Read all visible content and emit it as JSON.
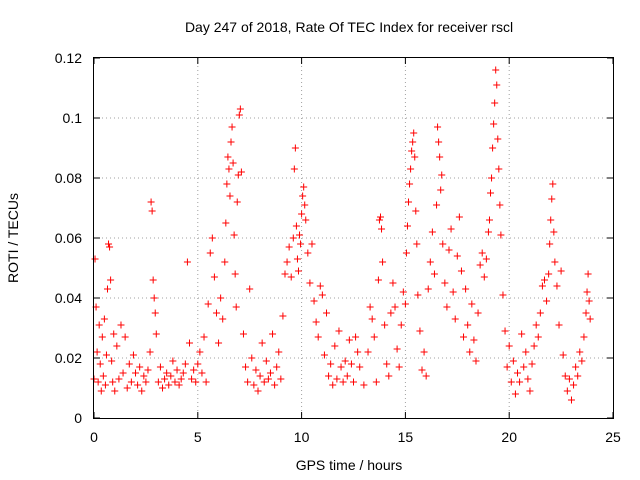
{
  "chart_data": {
    "type": "scatter",
    "title": "Day 247 of 2018, Rate Of TEC Index for receiver rscl",
    "xlabel": "GPS time / hours",
    "ylabel": "ROTI / TECUs",
    "xlim": [
      0,
      25
    ],
    "ylim": [
      0,
      0.12
    ],
    "xticks": [
      0,
      5,
      10,
      15,
      20,
      25
    ],
    "xtick_labels": [
      "0",
      "5",
      "10",
      "15",
      "20",
      "25"
    ],
    "yticks": [
      0,
      0.02,
      0.04,
      0.06,
      0.08,
      0.1,
      0.12
    ],
    "ytick_labels": [
      "0",
      "0.02",
      "0.04",
      "0.06",
      "0.08",
      "0.1",
      "0.12"
    ],
    "grid": true,
    "marker": "+",
    "color": "#ff0000",
    "series": [
      {
        "name": "ROTI",
        "points": [
          [
            0.0,
            0.013
          ],
          [
            0.05,
            0.053
          ],
          [
            0.1,
            0.037
          ],
          [
            0.15,
            0.022
          ],
          [
            0.2,
            0.012
          ],
          [
            0.25,
            0.031
          ],
          [
            0.3,
            0.018
          ],
          [
            0.35,
            0.009
          ],
          [
            0.4,
            0.027
          ],
          [
            0.45,
            0.014
          ],
          [
            0.5,
            0.033
          ],
          [
            0.55,
            0.011
          ],
          [
            0.6,
            0.021
          ],
          [
            0.65,
            0.043
          ],
          [
            0.7,
            0.058
          ],
          [
            0.75,
            0.057
          ],
          [
            0.8,
            0.046
          ],
          [
            0.85,
            0.019
          ],
          [
            0.9,
            0.012
          ],
          [
            0.95,
            0.028
          ],
          [
            1.0,
            0.009
          ],
          [
            1.1,
            0.024
          ],
          [
            1.2,
            0.013
          ],
          [
            1.3,
            0.031
          ],
          [
            1.4,
            0.015
          ],
          [
            1.5,
            0.027
          ],
          [
            1.6,
            0.01
          ],
          [
            1.7,
            0.018
          ],
          [
            1.8,
            0.012
          ],
          [
            1.9,
            0.021
          ],
          [
            2.0,
            0.015
          ],
          [
            2.1,
            0.011
          ],
          [
            2.2,
            0.017
          ],
          [
            2.3,
            0.009
          ],
          [
            2.4,
            0.014
          ],
          [
            2.5,
            0.012
          ],
          [
            2.6,
            0.016
          ],
          [
            2.7,
            0.022
          ],
          [
            2.75,
            0.072
          ],
          [
            2.8,
            0.069
          ],
          [
            2.85,
            0.046
          ],
          [
            2.9,
            0.04
          ],
          [
            2.95,
            0.035
          ],
          [
            3.0,
            0.028
          ],
          [
            3.1,
            0.012
          ],
          [
            3.2,
            0.017
          ],
          [
            3.3,
            0.01
          ],
          [
            3.4,
            0.013
          ],
          [
            3.5,
            0.015
          ],
          [
            3.6,
            0.011
          ],
          [
            3.7,
            0.014
          ],
          [
            3.8,
            0.019
          ],
          [
            3.9,
            0.012
          ],
          [
            4.0,
            0.016
          ],
          [
            4.1,
            0.011
          ],
          [
            4.2,
            0.013
          ],
          [
            4.3,
            0.015
          ],
          [
            4.4,
            0.018
          ],
          [
            4.5,
            0.052
          ],
          [
            4.6,
            0.025
          ],
          [
            4.7,
            0.013
          ],
          [
            4.8,
            0.016
          ],
          [
            4.9,
            0.012
          ],
          [
            5.0,
            0.018
          ],
          [
            5.1,
            0.022
          ],
          [
            5.2,
            0.015
          ],
          [
            5.3,
            0.027
          ],
          [
            5.4,
            0.012
          ],
          [
            5.5,
            0.038
          ],
          [
            5.6,
            0.055
          ],
          [
            5.7,
            0.06
          ],
          [
            5.8,
            0.047
          ],
          [
            5.9,
            0.035
          ],
          [
            6.0,
            0.025
          ],
          [
            6.1,
            0.04
          ],
          [
            6.2,
            0.033
          ],
          [
            6.3,
            0.052
          ],
          [
            6.35,
            0.065
          ],
          [
            6.4,
            0.078
          ],
          [
            6.45,
            0.087
          ],
          [
            6.5,
            0.083
          ],
          [
            6.55,
            0.074
          ],
          [
            6.6,
            0.092
          ],
          [
            6.65,
            0.097
          ],
          [
            6.7,
            0.085
          ],
          [
            6.75,
            0.061
          ],
          [
            6.8,
            0.048
          ],
          [
            6.85,
            0.037
          ],
          [
            6.9,
            0.072
          ],
          [
            6.95,
            0.081
          ],
          [
            7.0,
            0.101
          ],
          [
            7.05,
            0.103
          ],
          [
            7.1,
            0.082
          ],
          [
            7.2,
            0.028
          ],
          [
            7.3,
            0.017
          ],
          [
            7.4,
            0.012
          ],
          [
            7.5,
            0.043
          ],
          [
            7.6,
            0.02
          ],
          [
            7.7,
            0.011
          ],
          [
            7.8,
            0.016
          ],
          [
            7.9,
            0.009
          ],
          [
            8.0,
            0.014
          ],
          [
            8.1,
            0.025
          ],
          [
            8.2,
            0.012
          ],
          [
            8.3,
            0.019
          ],
          [
            8.4,
            0.013
          ],
          [
            8.5,
            0.015
          ],
          [
            8.6,
            0.028
          ],
          [
            8.7,
            0.011
          ],
          [
            8.8,
            0.017
          ],
          [
            8.9,
            0.022
          ],
          [
            9.0,
            0.013
          ],
          [
            9.1,
            0.034
          ],
          [
            9.2,
            0.048
          ],
          [
            9.3,
            0.052
          ],
          [
            9.4,
            0.057
          ],
          [
            9.5,
            0.047
          ],
          [
            9.6,
            0.06
          ],
          [
            9.65,
            0.083
          ],
          [
            9.7,
            0.09
          ],
          [
            9.75,
            0.064
          ],
          [
            9.8,
            0.053
          ],
          [
            9.85,
            0.049
          ],
          [
            9.9,
            0.061
          ],
          [
            9.95,
            0.058
          ],
          [
            10.0,
            0.068
          ],
          [
            10.05,
            0.074
          ],
          [
            10.1,
            0.077
          ],
          [
            10.15,
            0.071
          ],
          [
            10.2,
            0.066
          ],
          [
            10.3,
            0.055
          ],
          [
            10.4,
            0.045
          ],
          [
            10.5,
            0.058
          ],
          [
            10.6,
            0.039
          ],
          [
            10.7,
            0.032
          ],
          [
            10.8,
            0.027
          ],
          [
            10.9,
            0.044
          ],
          [
            11.0,
            0.041
          ],
          [
            11.1,
            0.021
          ],
          [
            11.2,
            0.035
          ],
          [
            11.3,
            0.014
          ],
          [
            11.4,
            0.018
          ],
          [
            11.5,
            0.011
          ],
          [
            11.6,
            0.024
          ],
          [
            11.7,
            0.013
          ],
          [
            11.8,
            0.029
          ],
          [
            11.9,
            0.017
          ],
          [
            12.0,
            0.012
          ],
          [
            12.1,
            0.019
          ],
          [
            12.2,
            0.014
          ],
          [
            12.3,
            0.026
          ],
          [
            12.4,
            0.018
          ],
          [
            12.5,
            0.012
          ],
          [
            12.6,
            0.027
          ],
          [
            12.7,
            0.022
          ],
          [
            12.8,
            0.017
          ],
          [
            13.0,
            0.011
          ],
          [
            13.2,
            0.022
          ],
          [
            13.3,
            0.037
          ],
          [
            13.4,
            0.033
          ],
          [
            13.5,
            0.027
          ],
          [
            13.6,
            0.012
          ],
          [
            13.7,
            0.046
          ],
          [
            13.75,
            0.066
          ],
          [
            13.8,
            0.067
          ],
          [
            13.85,
            0.063
          ],
          [
            13.9,
            0.052
          ],
          [
            14.0,
            0.031
          ],
          [
            14.1,
            0.018
          ],
          [
            14.2,
            0.014
          ],
          [
            14.3,
            0.035
          ],
          [
            14.4,
            0.045
          ],
          [
            14.5,
            0.037
          ],
          [
            14.6,
            0.023
          ],
          [
            14.7,
            0.017
          ],
          [
            14.8,
            0.031
          ],
          [
            14.9,
            0.042
          ],
          [
            15.0,
            0.038
          ],
          [
            15.05,
            0.055
          ],
          [
            15.1,
            0.064
          ],
          [
            15.15,
            0.072
          ],
          [
            15.2,
            0.078
          ],
          [
            15.25,
            0.083
          ],
          [
            15.3,
            0.089
          ],
          [
            15.35,
            0.092
          ],
          [
            15.4,
            0.095
          ],
          [
            15.45,
            0.087
          ],
          [
            15.5,
            0.069
          ],
          [
            15.55,
            0.058
          ],
          [
            15.6,
            0.041
          ],
          [
            15.7,
            0.029
          ],
          [
            15.8,
            0.016
          ],
          [
            15.9,
            0.022
          ],
          [
            16.0,
            0.014
          ],
          [
            16.1,
            0.043
          ],
          [
            16.2,
            0.052
          ],
          [
            16.3,
            0.062
          ],
          [
            16.4,
            0.048
          ],
          [
            16.5,
            0.071
          ],
          [
            16.55,
            0.097
          ],
          [
            16.6,
            0.092
          ],
          [
            16.65,
            0.087
          ],
          [
            16.7,
            0.076
          ],
          [
            16.75,
            0.081
          ],
          [
            16.8,
            0.058
          ],
          [
            16.9,
            0.045
          ],
          [
            17.0,
            0.037
          ],
          [
            17.1,
            0.056
          ],
          [
            17.2,
            0.063
          ],
          [
            17.3,
            0.042
          ],
          [
            17.4,
            0.033
          ],
          [
            17.5,
            0.054
          ],
          [
            17.6,
            0.067
          ],
          [
            17.7,
            0.049
          ],
          [
            17.8,
            0.027
          ],
          [
            17.9,
            0.043
          ],
          [
            18.0,
            0.031
          ],
          [
            18.1,
            0.022
          ],
          [
            18.2,
            0.038
          ],
          [
            18.3,
            0.026
          ],
          [
            18.4,
            0.019
          ],
          [
            18.5,
            0.035
          ],
          [
            18.6,
            0.051
          ],
          [
            18.7,
            0.055
          ],
          [
            18.8,
            0.047
          ],
          [
            18.9,
            0.053
          ],
          [
            19.0,
            0.062
          ],
          [
            19.05,
            0.066
          ],
          [
            19.1,
            0.075
          ],
          [
            19.15,
            0.08
          ],
          [
            19.2,
            0.09
          ],
          [
            19.25,
            0.098
          ],
          [
            19.3,
            0.105
          ],
          [
            19.35,
            0.116
          ],
          [
            19.4,
            0.111
          ],
          [
            19.45,
            0.093
          ],
          [
            19.5,
            0.083
          ],
          [
            19.55,
            0.071
          ],
          [
            19.6,
            0.061
          ],
          [
            19.7,
            0.041
          ],
          [
            19.8,
            0.029
          ],
          [
            19.9,
            0.017
          ],
          [
            20.0,
            0.024
          ],
          [
            20.1,
            0.012
          ],
          [
            20.2,
            0.019
          ],
          [
            20.3,
            0.008
          ],
          [
            20.4,
            0.015
          ],
          [
            20.5,
            0.012
          ],
          [
            20.6,
            0.028
          ],
          [
            20.7,
            0.017
          ],
          [
            20.8,
            0.022
          ],
          [
            20.9,
            0.013
          ],
          [
            21.0,
            0.009
          ],
          [
            21.1,
            0.018
          ],
          [
            21.2,
            0.024
          ],
          [
            21.3,
            0.031
          ],
          [
            21.4,
            0.027
          ],
          [
            21.5,
            0.035
          ],
          [
            21.6,
            0.044
          ],
          [
            21.7,
            0.046
          ],
          [
            21.8,
            0.039
          ],
          [
            21.9,
            0.048
          ],
          [
            21.95,
            0.058
          ],
          [
            22.0,
            0.066
          ],
          [
            22.05,
            0.073
          ],
          [
            22.1,
            0.078
          ],
          [
            22.15,
            0.062
          ],
          [
            22.2,
            0.052
          ],
          [
            22.3,
            0.044
          ],
          [
            22.4,
            0.031
          ],
          [
            22.5,
            0.049
          ],
          [
            22.6,
            0.021
          ],
          [
            22.7,
            0.014
          ],
          [
            22.8,
            0.009
          ],
          [
            22.9,
            0.013
          ],
          [
            23.0,
            0.006
          ],
          [
            23.1,
            0.011
          ],
          [
            23.2,
            0.017
          ],
          [
            23.3,
            0.014
          ],
          [
            23.4,
            0.022
          ],
          [
            23.5,
            0.019
          ],
          [
            23.6,
            0.027
          ],
          [
            23.7,
            0.035
          ],
          [
            23.75,
            0.042
          ],
          [
            23.8,
            0.048
          ],
          [
            23.85,
            0.039
          ],
          [
            23.9,
            0.033
          ]
        ]
      }
    ]
  }
}
